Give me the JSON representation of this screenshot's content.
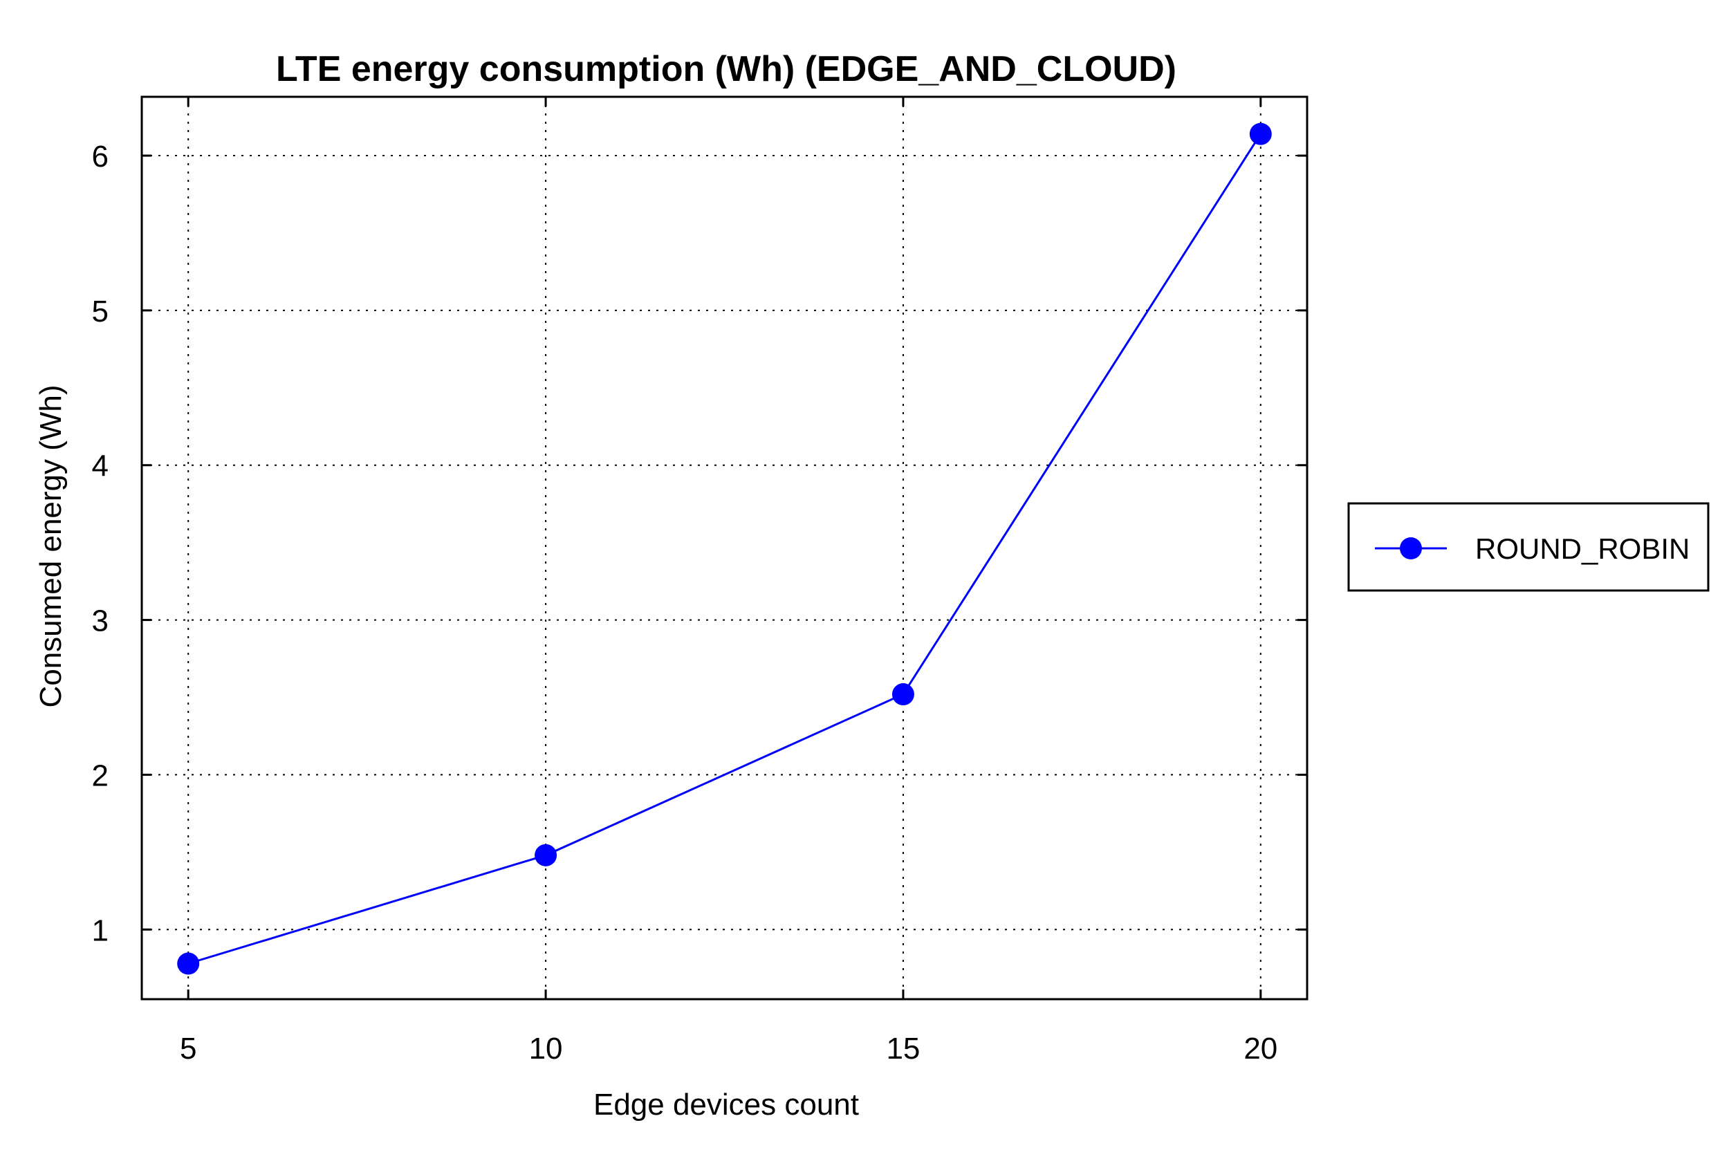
{
  "chart_data": {
    "type": "line",
    "title": "LTE energy consumption (Wh) (EDGE_AND_CLOUD)",
    "xlabel": "Edge devices count",
    "ylabel": "Consumed energy (Wh)",
    "x": [
      5,
      10,
      15,
      20
    ],
    "xticks": [
      5,
      10,
      15,
      20
    ],
    "yticks": [
      1,
      2,
      3,
      4,
      5,
      6
    ],
    "xlim": [
      4.35,
      20.65
    ],
    "ylim": [
      0.55,
      6.38
    ],
    "grid": true,
    "legend_position": "right",
    "series": [
      {
        "name": "ROUND_ROBIN",
        "color": "#0000ff",
        "marker": "circle",
        "values": [
          0.78,
          1.48,
          2.52,
          6.14
        ]
      }
    ]
  }
}
